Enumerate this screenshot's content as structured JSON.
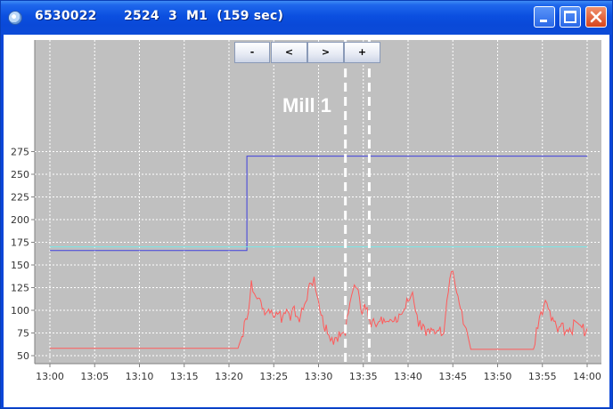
{
  "window": {
    "title": "6530022      2524  3  M1  (159 sec)"
  },
  "nav_buttons": {
    "minus": "-",
    "prev": "<",
    "next": ">",
    "plus": "+"
  },
  "chart_data": {
    "type": "line",
    "xlim": [
      "13:00",
      "14:00"
    ],
    "ylim": [
      45,
      280
    ],
    "x_ticks": [
      "13:00",
      "13:05",
      "13:10",
      "13:15",
      "13:20",
      "13:25",
      "13:30",
      "13:35",
      "13:40",
      "13:45",
      "13:50",
      "13:55",
      "14:00"
    ],
    "y_ticks": [
      50,
      75,
      100,
      125,
      150,
      175,
      200,
      225,
      250,
      275
    ],
    "grid": true,
    "annotation": "Mill 1",
    "markers": [
      "13:33",
      "13:35:40"
    ],
    "series": [
      {
        "color": "#4040dc",
        "x": [
          "13:00",
          "13:22",
          "13:22",
          "14:00"
        ],
        "y": [
          166,
          166,
          270,
          270
        ]
      },
      {
        "color": "#78e8e8",
        "x": [
          "13:00",
          "14:00"
        ],
        "y": [
          170,
          170
        ]
      },
      {
        "color": "#ff5a5a",
        "x": [
          "13:00",
          "13:21",
          "13:22",
          "13:22:30",
          "13:23",
          "13:24",
          "13:25",
          "13:26",
          "13:27",
          "13:28",
          "13:29",
          "13:29:30",
          "13:30",
          "13:31",
          "13:31:30",
          "13:32",
          "13:33",
          "13:33:30",
          "13:34",
          "13:35",
          "13:36",
          "13:37",
          "13:38",
          "13:39",
          "13:40",
          "13:40:30",
          "13:41",
          "13:41:30",
          "13:42",
          "13:43",
          "13:44",
          "13:44:30",
          "13:45",
          "13:46",
          "13:46:30",
          "13:47",
          "13:50",
          "13:54",
          "13:54:30",
          "13:55",
          "13:55:30",
          "13:56",
          "13:57",
          "14:00"
        ],
        "y": [
          58,
          58,
          90,
          133,
          115,
          95,
          92,
          93,
          98,
          94,
          130,
          137,
          110,
          74,
          70,
          70,
          72,
          108,
          128,
          100,
          88,
          93,
          90,
          96,
          110,
          120,
          95,
          78,
          72,
          74,
          75,
          120,
          143,
          100,
          80,
          57,
          57,
          57,
          80,
          95,
          108,
          88,
          82,
          80
        ]
      }
    ]
  }
}
